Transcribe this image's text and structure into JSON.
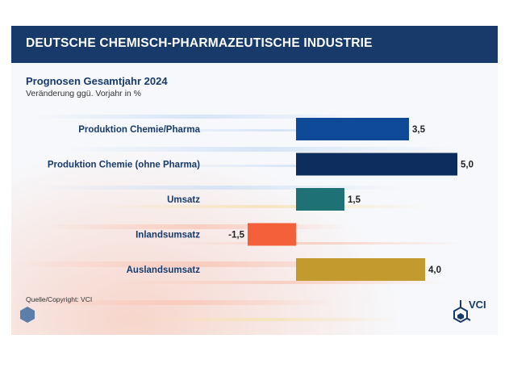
{
  "header": {
    "title": "DEUTSCHE CHEMISCH-PHARMAZEUTISCHE INDUSTRIE"
  },
  "subtitle": "Prognosen Gesamtjahr 2024",
  "unit_note": "Veränderung ggü. Vorjahr in %",
  "source": "Quelle/Copyright: VCI",
  "logo_text": "VCI",
  "icons": {
    "hexagon": "hexagon-icon",
    "logo": "vci-logo-icon"
  },
  "colors": {
    "header_bg": "#173a6b",
    "label_text": "#173a6b"
  },
  "chart_data": {
    "type": "bar",
    "orientation": "horizontal",
    "categories": [
      "Produktion Chemie/Pharma",
      "Produktion Chemie (ohne Pharma)",
      "Umsatz",
      "Inlandsumsatz",
      "Auslandsumsatz"
    ],
    "values": [
      3.5,
      5.0,
      1.5,
      -1.5,
      4.0
    ],
    "value_labels": [
      "3,5",
      "5,0",
      "1,5",
      "-1,5",
      "4,0"
    ],
    "bar_colors": [
      "#0f4a99",
      "#0d2d5e",
      "#1e7276",
      "#f4603a",
      "#c39a2d"
    ],
    "xlim": [
      -1.5,
      5.0
    ],
    "grid": false,
    "legend": "none"
  }
}
